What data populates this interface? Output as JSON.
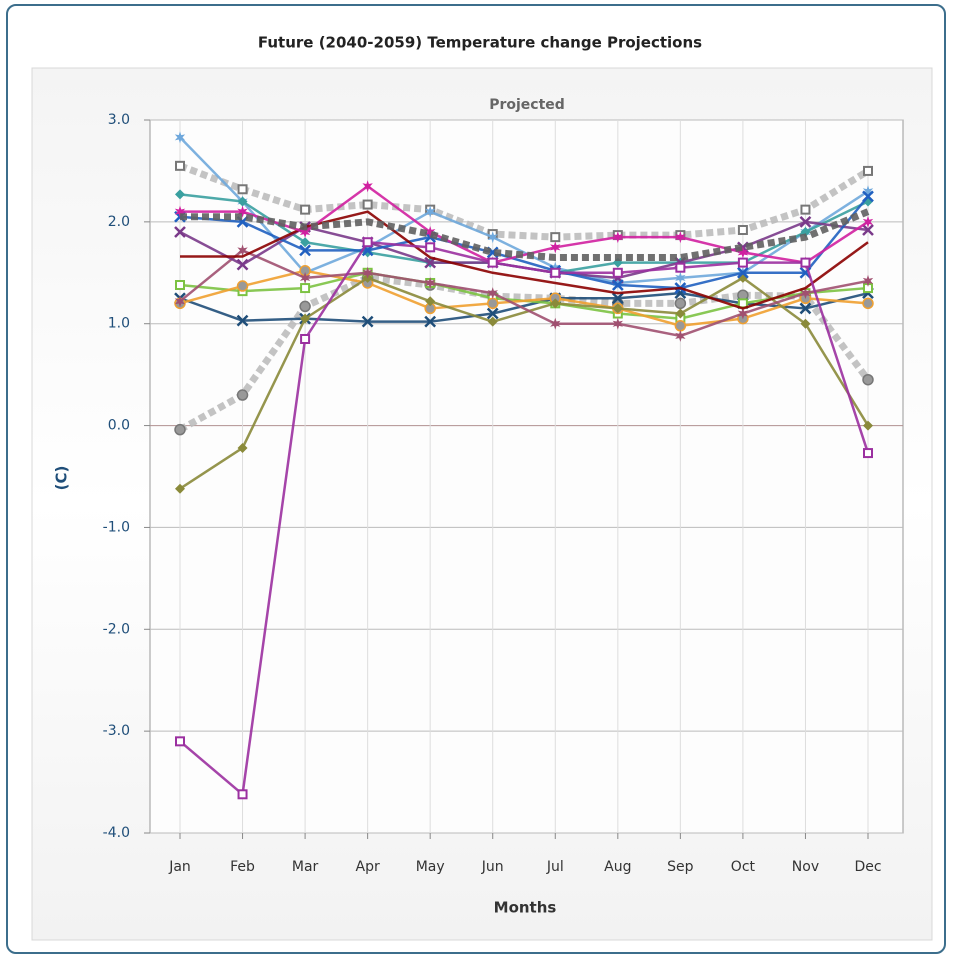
{
  "chart_data": {
    "type": "line",
    "title": "Future (2040-2059) Temperature change Projections",
    "subtitle": "Projected",
    "x_label": "Months",
    "y_label": "(C)",
    "categories": [
      "Jan",
      "Feb",
      "Mar",
      "Apr",
      "May",
      "Jun",
      "Jul",
      "Aug",
      "Sep",
      "Oct",
      "Nov",
      "Dec"
    ],
    "ylim": [
      -4,
      3
    ],
    "yticks": [
      {
        "value": -4,
        "label": "-4.0"
      },
      {
        "value": -3,
        "label": "-3.0"
      },
      {
        "value": -2,
        "label": "-2.0"
      },
      {
        "value": -1,
        "label": "-1.0"
      },
      {
        "value": 0,
        "label": "0.0"
      },
      {
        "value": 1,
        "label": "1.0"
      },
      {
        "value": 2,
        "label": "2.0"
      },
      {
        "value": 3,
        "label": "3.0"
      }
    ],
    "grid": true,
    "series": [
      {
        "color": "#bdbdbd",
        "marker": "square",
        "dashed": true,
        "values": [
          2.55,
          2.32,
          2.12,
          2.17,
          2.12,
          1.88,
          1.85,
          1.87,
          1.87,
          1.92,
          2.12,
          2.5
        ]
      },
      {
        "color": "#bdbdbd",
        "marker": "circle",
        "dashed": true,
        "values": [
          -0.04,
          0.3,
          1.17,
          1.45,
          1.38,
          1.27,
          1.25,
          1.2,
          1.2,
          1.28,
          1.27,
          0.45
        ]
      },
      {
        "color": "#6fa8dc",
        "marker": "star",
        "dashed": false,
        "values": [
          2.83,
          2.2,
          1.5,
          1.75,
          2.1,
          1.85,
          1.55,
          1.4,
          1.45,
          1.5,
          1.9,
          2.3
        ]
      },
      {
        "color": "#3aa0a0",
        "marker": "diamond",
        "dashed": false,
        "values": [
          2.27,
          2.2,
          1.8,
          1.7,
          1.6,
          1.6,
          1.5,
          1.6,
          1.6,
          1.6,
          1.9,
          2.2
        ]
      },
      {
        "color": "#1f4e79",
        "marker": "cross",
        "dashed": false,
        "values": [
          1.25,
          1.03,
          1.05,
          1.02,
          1.02,
          1.1,
          1.25,
          1.25,
          1.3,
          1.2,
          1.15,
          1.3
        ]
      },
      {
        "color": "#7cc242",
        "marker": "square",
        "dashed": false,
        "values": [
          1.38,
          1.32,
          1.35,
          1.5,
          1.4,
          1.25,
          1.2,
          1.1,
          1.05,
          1.2,
          1.3,
          1.35
        ]
      },
      {
        "color": "#f0a030",
        "marker": "circle",
        "dashed": false,
        "values": [
          1.2,
          1.37,
          1.52,
          1.4,
          1.15,
          1.2,
          1.25,
          1.15,
          0.98,
          1.05,
          1.25,
          1.2
        ]
      },
      {
        "color": "#8a8a3a",
        "marker": "diamond",
        "dashed": false,
        "values": [
          -0.62,
          -0.22,
          1.05,
          1.45,
          1.22,
          1.02,
          1.2,
          1.15,
          1.1,
          1.45,
          1.0,
          0.0
        ]
      },
      {
        "color": "#a05070",
        "marker": "star",
        "dashed": false,
        "values": [
          1.22,
          1.72,
          1.45,
          1.5,
          1.4,
          1.3,
          1.0,
          1.0,
          0.88,
          1.1,
          1.3,
          1.42
        ]
      },
      {
        "color": "#7a3a8a",
        "marker": "cross",
        "dashed": false,
        "values": [
          1.9,
          1.58,
          1.95,
          1.8,
          1.6,
          1.6,
          1.5,
          1.45,
          1.6,
          1.75,
          2.0,
          1.92
        ]
      },
      {
        "color": "#2060c0",
        "marker": "cross",
        "dashed": false,
        "values": [
          2.05,
          2.0,
          1.72,
          1.72,
          1.85,
          1.7,
          1.52,
          1.38,
          1.35,
          1.5,
          1.5,
          2.25
        ]
      },
      {
        "color": "#8b0000",
        "marker": "none",
        "dashed": false,
        "values": [
          1.66,
          1.66,
          1.95,
          2.1,
          1.65,
          1.5,
          1.4,
          1.3,
          1.35,
          1.15,
          1.35,
          1.8
        ]
      },
      {
        "color": "#d020a0",
        "marker": "star",
        "dashed": false,
        "values": [
          2.1,
          2.1,
          1.9,
          2.35,
          1.9,
          1.6,
          1.75,
          1.85,
          1.85,
          1.7,
          1.6,
          2.0
        ]
      },
      {
        "color": "#606060",
        "marker": "none",
        "dashed": true,
        "values": [
          2.05,
          2.05,
          1.95,
          2.0,
          1.88,
          1.7,
          1.65,
          1.65,
          1.65,
          1.75,
          1.85,
          2.1
        ]
      },
      {
        "color": "#9b30a0",
        "marker": "square",
        "dashed": false,
        "values": [
          -3.1,
          -3.62,
          0.85,
          1.8,
          1.75,
          1.6,
          1.5,
          1.5,
          1.55,
          1.6,
          1.6,
          -0.27
        ]
      }
    ]
  }
}
